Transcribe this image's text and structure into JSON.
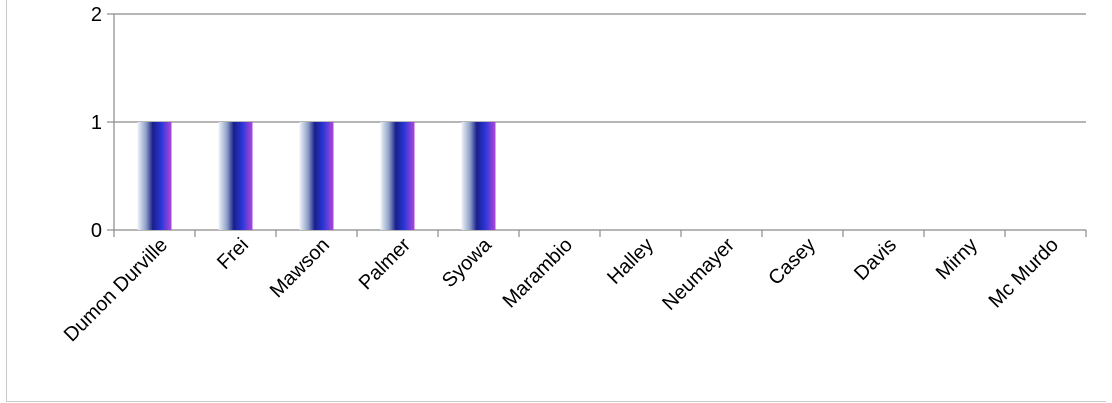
{
  "chart_data": {
    "type": "bar",
    "categories": [
      "Dumon Durville",
      "Frei",
      "Mawson",
      "Palmer",
      "Syowa",
      "Marambio",
      "Halley",
      "Neumayer",
      "Casey",
      "Davis",
      "Mirny",
      "Mc Murdo"
    ],
    "values": [
      1,
      1,
      1,
      1,
      1,
      0,
      0,
      0,
      0,
      0,
      0,
      0
    ],
    "ylim": [
      0,
      2
    ],
    "yticks": [
      0,
      1,
      2
    ],
    "grid": true,
    "legend": "none",
    "colors": {
      "bar_light": "#e8eef6",
      "bar_dark": "#1a1f9a",
      "bar_blue": "#2a3cd8",
      "bar_purple": "#b040d0",
      "gridline": "#8a8a8a"
    }
  }
}
